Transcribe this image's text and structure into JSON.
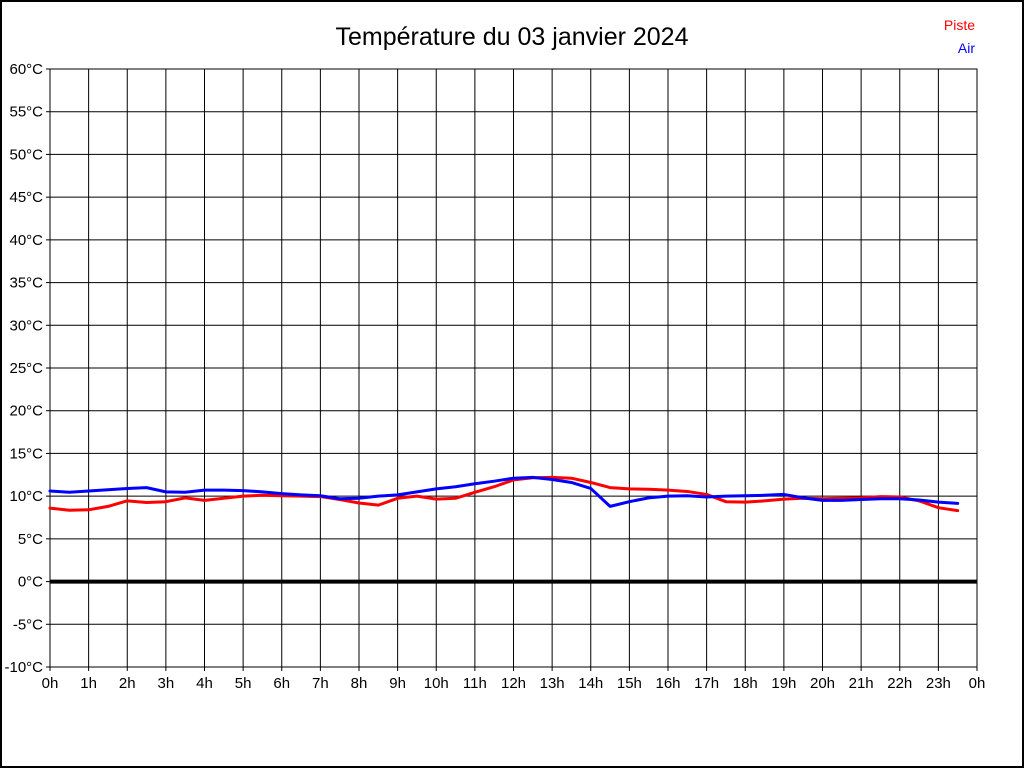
{
  "window": {
    "background": "#ffffff",
    "frame_border_color": "#000000"
  },
  "header": {
    "title": "Température du 03 janvier 2024"
  },
  "legend": {
    "position": "top-right",
    "items": [
      {
        "label": "Piste",
        "color": "#ff0000"
      },
      {
        "label": "Air",
        "color": "#0000ff"
      }
    ]
  },
  "chart_data": {
    "type": "line",
    "title": "Température du 03 janvier 2024",
    "xlabel": "",
    "ylabel": "",
    "xlim": [
      0,
      24
    ],
    "ylim": [
      -10,
      60
    ],
    "grid": true,
    "grid_color": "#000000",
    "zero_line": {
      "value": 0,
      "color": "#000000",
      "stroke_width": 4
    },
    "x_ticks": {
      "values": [
        0,
        1,
        2,
        3,
        4,
        5,
        6,
        7,
        8,
        9,
        10,
        11,
        12,
        13,
        14,
        15,
        16,
        17,
        18,
        19,
        20,
        21,
        22,
        23,
        24
      ],
      "labels": [
        "0h",
        "1h",
        "2h",
        "3h",
        "4h",
        "5h",
        "6h",
        "7h",
        "8h",
        "9h",
        "10h",
        "11h",
        "12h",
        "13h",
        "14h",
        "15h",
        "16h",
        "17h",
        "18h",
        "19h",
        "20h",
        "21h",
        "22h",
        "23h",
        "0h"
      ]
    },
    "y_ticks": {
      "values": [
        60,
        55,
        50,
        45,
        40,
        35,
        30,
        25,
        20,
        15,
        10,
        5,
        0,
        -5,
        -10
      ],
      "labels": [
        "60°C",
        "55°C",
        "50°C",
        "45°C",
        "40°C",
        "35°C",
        "30°C",
        "25°C",
        "20°C",
        "15°C",
        "10°C",
        "5°C",
        "0°C",
        "-5°C",
        "-10°C"
      ]
    },
    "x": [
      0,
      0.5,
      1,
      1.5,
      2,
      2.5,
      3,
      3.5,
      4,
      4.5,
      5,
      5.5,
      6,
      6.5,
      7,
      7.5,
      8,
      8.5,
      9,
      9.5,
      10,
      10.5,
      11,
      11.5,
      12,
      12.5,
      13,
      13.5,
      14,
      14.5,
      15,
      15.5,
      16,
      16.5,
      17,
      17.5,
      18,
      18.5,
      19,
      19.5,
      20,
      20.5,
      21,
      21.5,
      22,
      22.5,
      23,
      23.5
    ],
    "series": [
      {
        "name": "Piste",
        "color": "#ff0000",
        "stroke_width": 3,
        "values": [
          8.6,
          8.35,
          8.4,
          8.8,
          9.45,
          9.25,
          9.35,
          9.8,
          9.5,
          9.75,
          10.0,
          10.1,
          10.05,
          10.0,
          9.95,
          9.6,
          9.2,
          8.95,
          9.75,
          10.0,
          9.65,
          9.75,
          10.45,
          11.1,
          11.9,
          12.15,
          12.2,
          12.1,
          11.6,
          11.0,
          10.85,
          10.8,
          10.7,
          10.55,
          10.2,
          9.35,
          9.3,
          9.45,
          9.65,
          9.75,
          9.7,
          9.75,
          9.8,
          9.95,
          9.9,
          9.45,
          8.65,
          8.3
        ]
      },
      {
        "name": "Air",
        "color": "#0000ff",
        "stroke_width": 3,
        "values": [
          10.6,
          10.45,
          10.6,
          10.75,
          10.9,
          11.0,
          10.5,
          10.45,
          10.7,
          10.7,
          10.65,
          10.5,
          10.3,
          10.15,
          10.05,
          9.7,
          9.75,
          10.0,
          10.15,
          10.5,
          10.85,
          11.1,
          11.45,
          11.75,
          12.1,
          12.2,
          11.95,
          11.6,
          10.9,
          8.8,
          9.35,
          9.8,
          10.0,
          10.05,
          9.9,
          10.0,
          10.05,
          10.1,
          10.2,
          9.8,
          9.5,
          9.5,
          9.6,
          9.7,
          9.7,
          9.55,
          9.3,
          9.15
        ]
      }
    ],
    "legend_position": "top-right"
  }
}
